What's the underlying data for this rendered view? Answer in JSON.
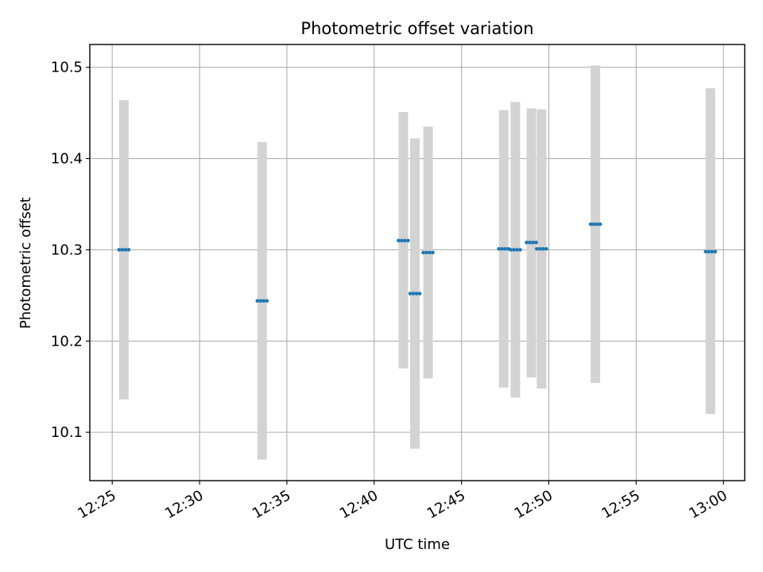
{
  "chart_data": {
    "type": "scatter",
    "title": "Photometric offset variation",
    "xlabel": "UTC time",
    "ylabel": "Photometric offset",
    "x_ticks": [
      "12:25",
      "12:30",
      "12:35",
      "12:40",
      "12:45",
      "12:50",
      "12:55",
      "13:00"
    ],
    "y_ticks": [
      "10.1",
      "10.2",
      "10.3",
      "10.4",
      "10.5"
    ],
    "xlim": [
      "12:23:43",
      "13:01:13"
    ],
    "ylim": [
      10.047,
      10.525
    ],
    "grid": true,
    "series": [
      {
        "marker_color": "#1f77b4",
        "errorbar_color": "#d3d3d3",
        "points": [
          {
            "time": "12:25:40",
            "value": 10.3,
            "err_low": 10.136,
            "err_high": 10.464
          },
          {
            "time": "12:33:35",
            "value": 10.244,
            "err_low": 10.07,
            "err_high": 10.418
          },
          {
            "time": "12:41:40",
            "value": 10.31,
            "err_low": 10.17,
            "err_high": 10.451
          },
          {
            "time": "12:42:20",
            "value": 10.252,
            "err_low": 10.082,
            "err_high": 10.422
          },
          {
            "time": "12:43:05",
            "value": 10.297,
            "err_low": 10.159,
            "err_high": 10.435
          },
          {
            "time": "12:47:25",
            "value": 10.301,
            "err_low": 10.149,
            "err_high": 10.453
          },
          {
            "time": "12:48:05",
            "value": 10.3,
            "err_low": 10.138,
            "err_high": 10.462
          },
          {
            "time": "12:49:00",
            "value": 10.308,
            "err_low": 10.16,
            "err_high": 10.455
          },
          {
            "time": "12:49:35",
            "value": 10.301,
            "err_low": 10.148,
            "err_high": 10.454
          },
          {
            "time": "12:52:40",
            "value": 10.328,
            "err_low": 10.154,
            "err_high": 10.502
          },
          {
            "time": "12:59:15",
            "value": 10.298,
            "err_low": 10.12,
            "err_high": 10.477
          }
        ]
      }
    ]
  }
}
